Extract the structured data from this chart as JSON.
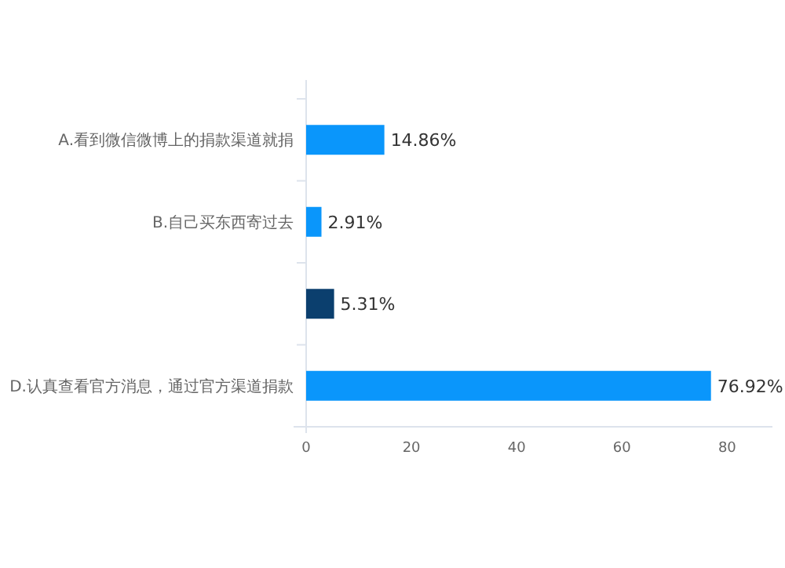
{
  "chart_data": {
    "type": "bar",
    "orientation": "horizontal",
    "categories": [
      "A.看到微信微博上的捐款渠道就捐",
      "B.自己买东西寄过去",
      null,
      "D.认真查看官方消息，通过官方渠道捐款"
    ],
    "values": [
      14.86,
      2.91,
      5.31,
      76.92
    ],
    "colors": [
      "#0a96fb",
      "#0a96fb",
      "#0b3f6e",
      "#0a96fb"
    ],
    "value_labels": [
      "14.86%",
      "2.91%",
      "5.31%",
      "76.92%"
    ],
    "xlim": [
      0,
      88
    ],
    "xticks": [
      0,
      20,
      40,
      60,
      80
    ]
  }
}
